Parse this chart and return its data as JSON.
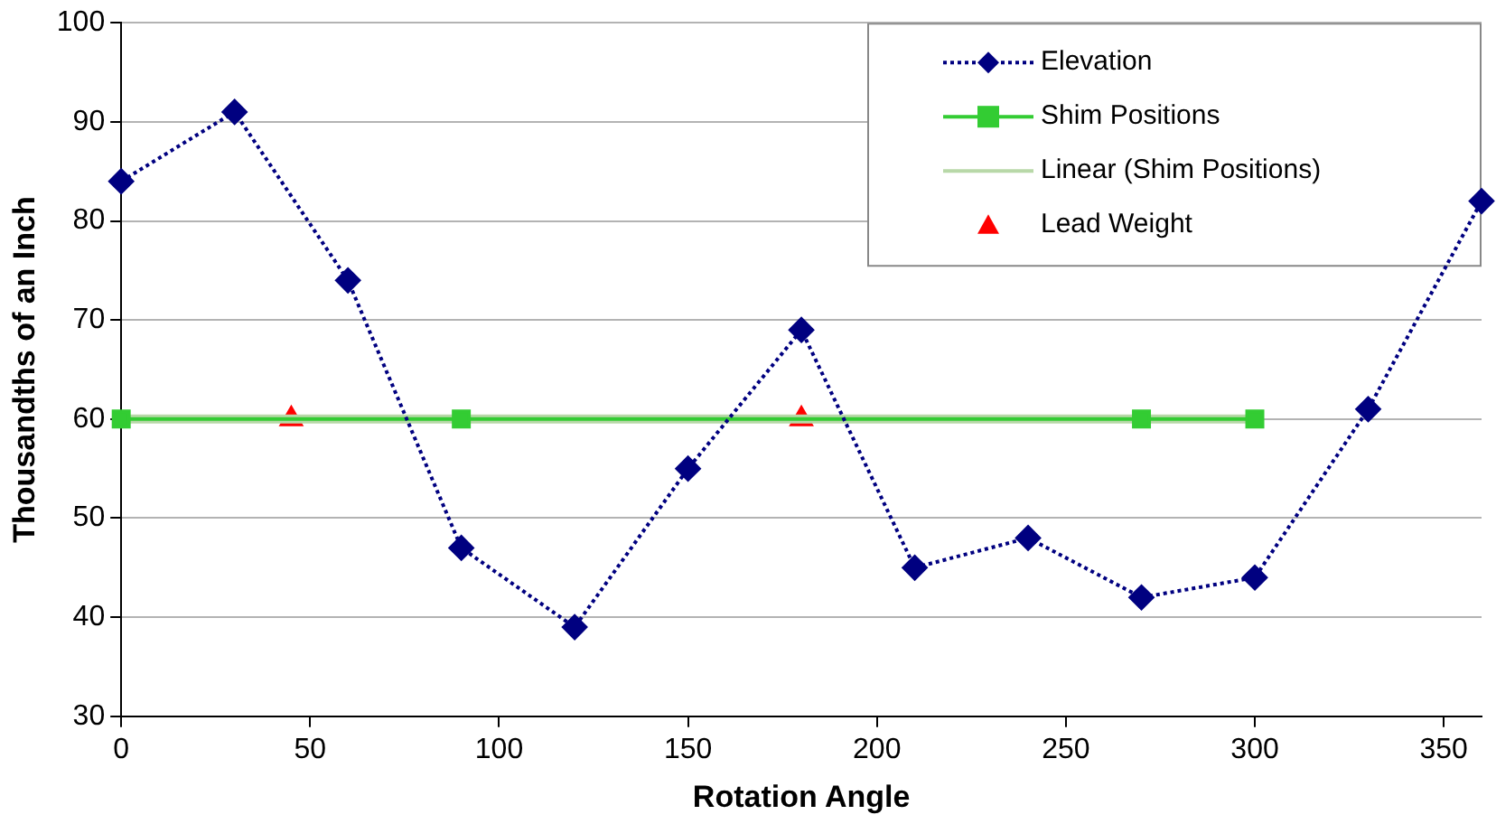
{
  "chart_data": {
    "type": "line",
    "xlabel": "Rotation Angle",
    "ylabel": "Thousandths of an Inch",
    "xlim": [
      0,
      360
    ],
    "xticks": [
      0,
      50,
      100,
      150,
      200,
      250,
      300,
      350
    ],
    "ylim": [
      30,
      100
    ],
    "yticks": [
      30,
      40,
      50,
      60,
      70,
      80,
      90,
      100
    ],
    "grid": "y",
    "legend": "top right",
    "series": [
      {
        "name": "Elevation",
        "type": "line",
        "color": "#000080",
        "marker": "diamond",
        "line_style": "dotted",
        "x": [
          0,
          30,
          60,
          90,
          120,
          150,
          180,
          210,
          240,
          270,
          300,
          330,
          360
        ],
        "values": [
          84,
          91,
          74,
          47,
          39,
          55,
          69,
          45,
          48,
          42,
          44,
          61,
          82
        ]
      },
      {
        "name": "Shim Positions",
        "type": "line",
        "color": "#33cc33",
        "marker": "square",
        "line_style": "solid",
        "x": [
          0,
          90,
          270,
          300
        ],
        "values": [
          60,
          60,
          60,
          60
        ]
      },
      {
        "name": "Linear (Shim Positions)",
        "type": "line",
        "color": "#b8d8a8",
        "marker": "none",
        "line_style": "solid",
        "x": [
          0,
          300
        ],
        "values": [
          60,
          60
        ]
      },
      {
        "name": "Lead Weight",
        "type": "scatter",
        "color": "#ff0000",
        "marker": "triangle",
        "x": [
          45,
          180
        ],
        "values": [
          60,
          60
        ]
      }
    ]
  }
}
